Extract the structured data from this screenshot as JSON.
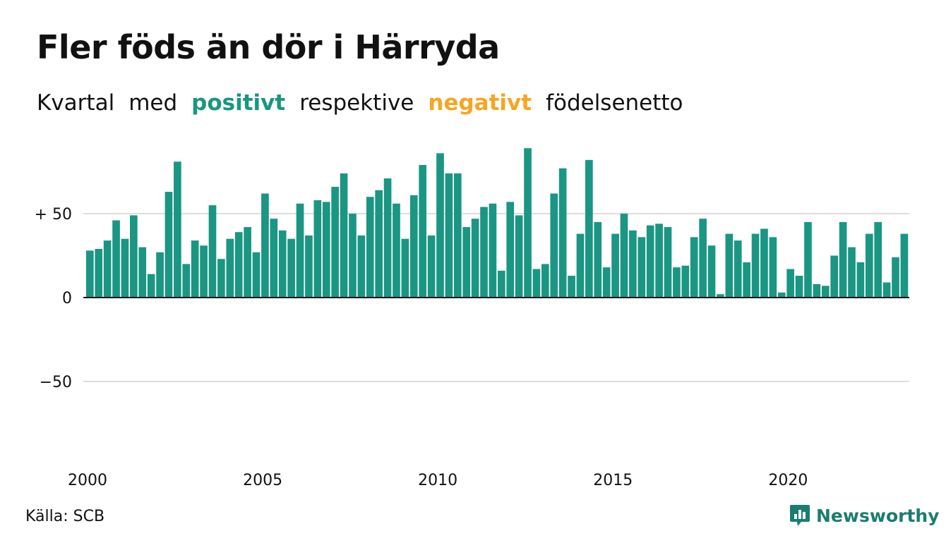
{
  "title": "Fler föds än dör i Härryda",
  "subtitle": {
    "w1": "Kvartal",
    "w2": "med",
    "positive": "positivt",
    "w3": "respektive",
    "negative": "negativt",
    "w4": "födelsenetto"
  },
  "source": "Källa: SCB",
  "logo": {
    "text": "Newsworthy",
    "icon": "newsworthy-logo-icon"
  },
  "colors": {
    "positive": "#1a9683",
    "negative": "#f5a623",
    "grid": "#dddddd",
    "zero": "#111111"
  },
  "chart_data": {
    "type": "bar",
    "xlabel": "",
    "ylabel": "",
    "ylim": [
      -100,
      90
    ],
    "yticks": [
      {
        "value": 50,
        "label": "+ 50"
      },
      {
        "value": 0,
        "label": "0"
      },
      {
        "value": -50,
        "label": "−50"
      }
    ],
    "xticks": [
      "2000",
      "2005",
      "2010",
      "2015",
      "2020"
    ],
    "x_start_year": 2000,
    "grid": true,
    "values": [
      28,
      29,
      34,
      46,
      35,
      49,
      30,
      14,
      27,
      63,
      81,
      20,
      34,
      31,
      55,
      23,
      35,
      39,
      42,
      27,
      62,
      47,
      40,
      35,
      56,
      37,
      58,
      57,
      66,
      74,
      50,
      37,
      60,
      64,
      71,
      56,
      35,
      61,
      79,
      37,
      86,
      74,
      74,
      42,
      47,
      54,
      56,
      16,
      57,
      49,
      89,
      17,
      20,
      62,
      77,
      13,
      38,
      82,
      45,
      18,
      38,
      50,
      40,
      36,
      43,
      44,
      42,
      18,
      19,
      36,
      47,
      31,
      2,
      38,
      34,
      21,
      38,
      41,
      36,
      3,
      17,
      13,
      45,
      8,
      7,
      25,
      45,
      30,
      21,
      38,
      45,
      9,
      24,
      38
    ]
  }
}
